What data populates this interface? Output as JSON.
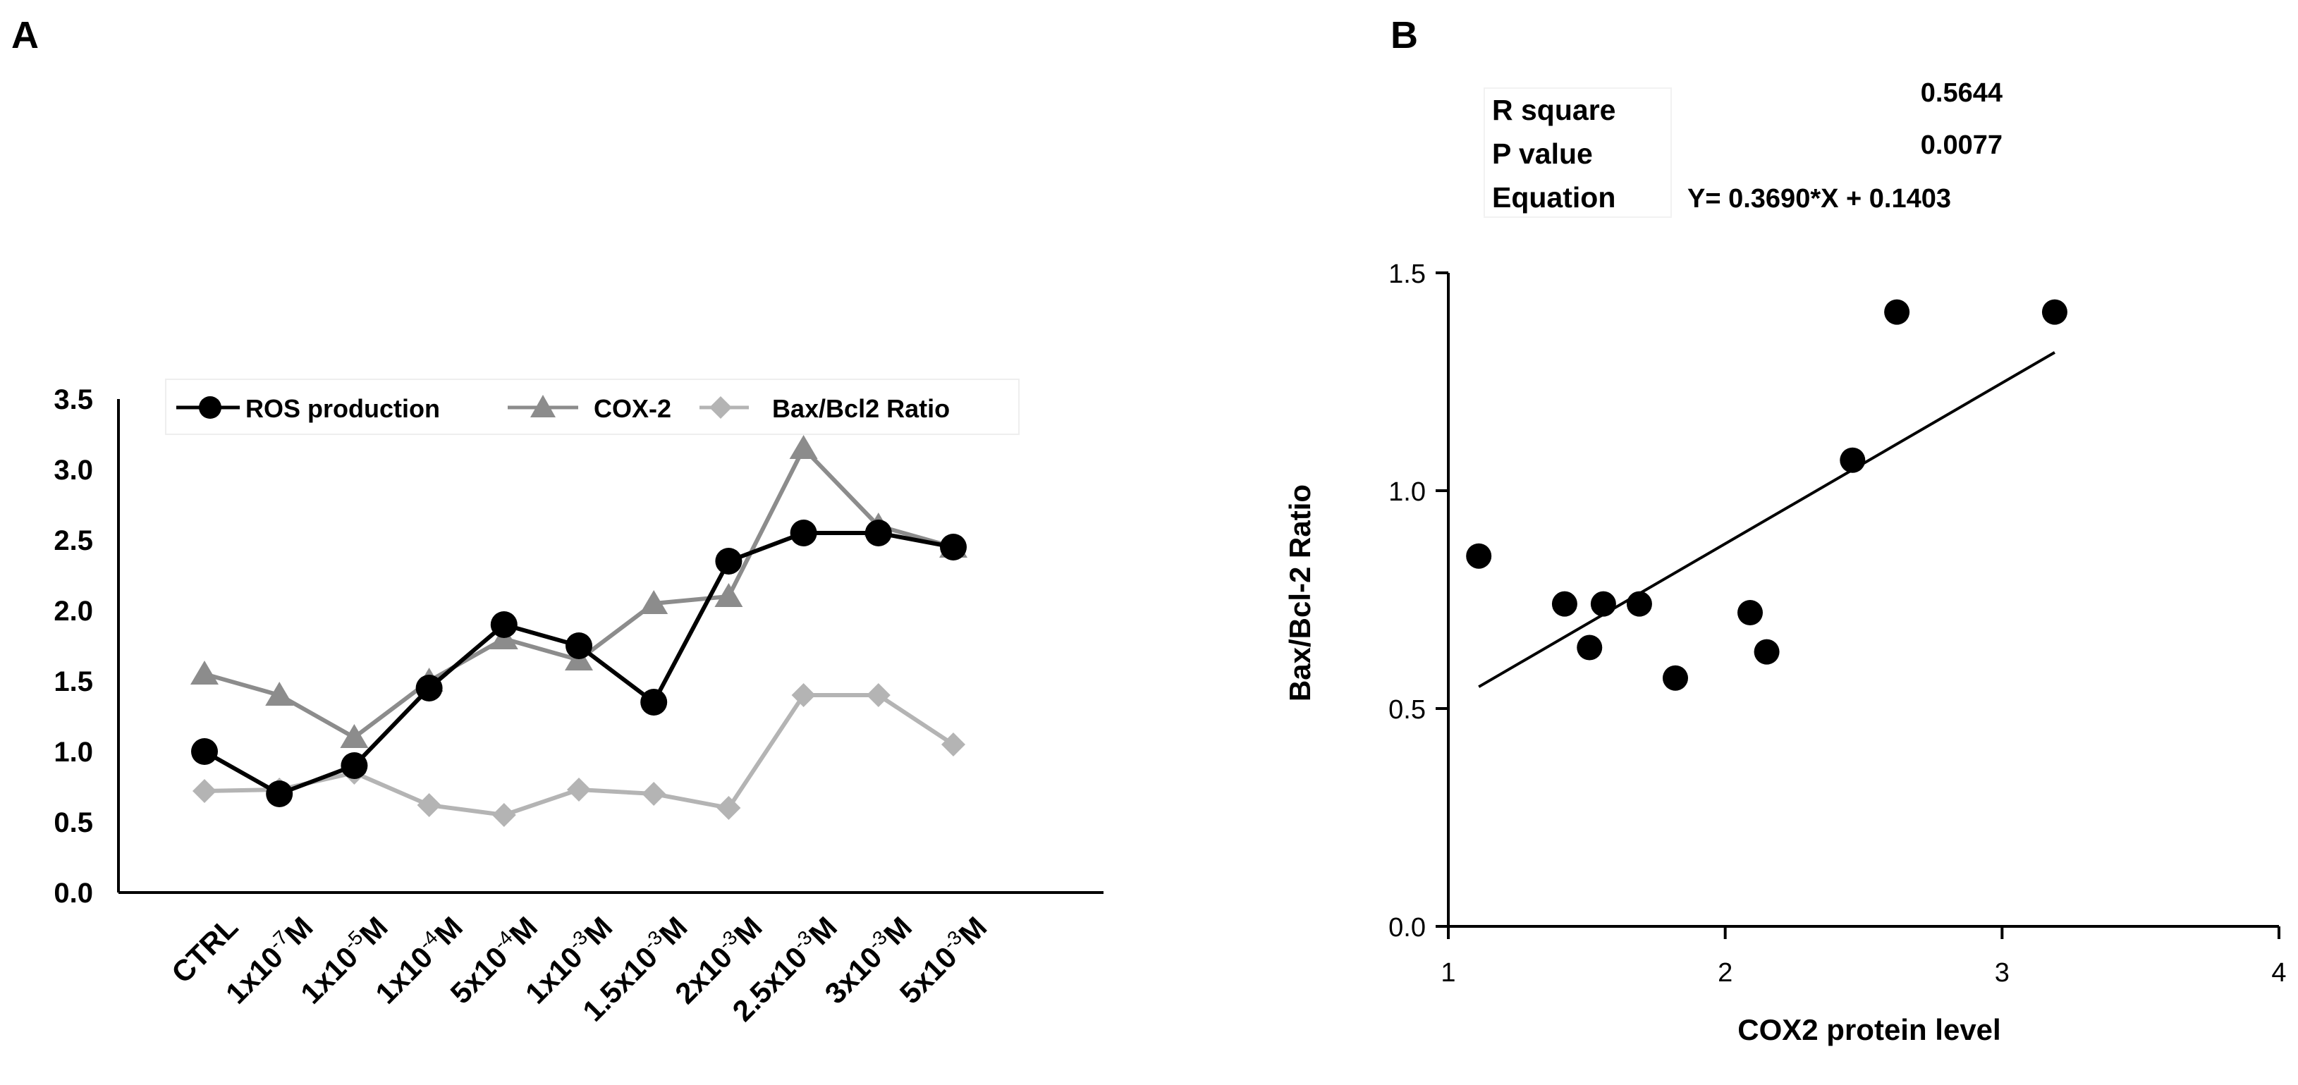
{
  "panels": {
    "a_label": "A",
    "b_label": "B"
  },
  "stats": {
    "rows": [
      {
        "label": "R square",
        "value": "0.5644"
      },
      {
        "label": "P value",
        "value": "0.0077"
      },
      {
        "label": "Equation",
        "value": "Y= 0.3690*X + 0.1403"
      }
    ]
  },
  "colors": {
    "ros": "#000000",
    "cox2": "#8c8c8c",
    "baxbcl2": "#b4b4b4",
    "axis": "#000000",
    "scatter": "#000000"
  },
  "chart_data": [
    {
      "panel": "A",
      "type": "line",
      "title": "",
      "xlabel": "",
      "ylabel": "",
      "ylim": [
        0,
        3.5
      ],
      "yticks": [
        "0.0",
        "0.5",
        "1.0",
        "1.5",
        "2.0",
        "2.5",
        "3.0",
        "3.5"
      ],
      "legend_position": "top",
      "categories": [
        {
          "base": "CTRL",
          "exp": "",
          "unit": ""
        },
        {
          "base": "1x10",
          "exp": "-7",
          "unit": "M"
        },
        {
          "base": "1x10",
          "exp": "-5",
          "unit": "M"
        },
        {
          "base": "1x10",
          "exp": "-4",
          "unit": "M"
        },
        {
          "base": "5x10",
          "exp": "-4",
          "unit": "M"
        },
        {
          "base": "1x10",
          "exp": "-3",
          "unit": "M"
        },
        {
          "base": "1.5x10",
          "exp": "-3",
          "unit": "M"
        },
        {
          "base": "2x10",
          "exp": "-3",
          "unit": "M"
        },
        {
          "base": "2.5x10",
          "exp": "-3",
          "unit": "M"
        },
        {
          "base": "3x10",
          "exp": "-3",
          "unit": "M"
        },
        {
          "base": "5x10",
          "exp": "-3",
          "unit": "M"
        }
      ],
      "series": [
        {
          "name": "ROS production",
          "marker": "circle",
          "color": "#000000",
          "values": [
            1.0,
            0.7,
            0.9,
            1.45,
            1.9,
            1.75,
            1.35,
            2.35,
            2.55,
            2.55,
            2.45
          ]
        },
        {
          "name": "COX-2",
          "marker": "triangle",
          "color": "#8c8c8c",
          "values": [
            1.55,
            1.4,
            1.1,
            1.5,
            1.8,
            1.65,
            2.05,
            2.1,
            3.15,
            2.6,
            2.45
          ]
        },
        {
          "name": "Bax/Bcl2 Ratio",
          "marker": "diamond",
          "color": "#b4b4b4",
          "values": [
            0.72,
            0.73,
            0.85,
            0.62,
            0.55,
            0.73,
            0.7,
            0.6,
            1.4,
            1.4,
            1.05
          ]
        }
      ]
    },
    {
      "panel": "B",
      "type": "scatter",
      "title": "",
      "xlabel": "COX2 protein level",
      "ylabel": "Bax/Bcl-2 Ratio",
      "xlim": [
        1,
        4
      ],
      "ylim": [
        0,
        1.5
      ],
      "xticks": [
        "1",
        "2",
        "3",
        "4"
      ],
      "yticks": [
        "0.0",
        "0.5",
        "1.0",
        "1.5"
      ],
      "points": [
        {
          "x": 1.11,
          "y": 0.85
        },
        {
          "x": 1.42,
          "y": 0.74
        },
        {
          "x": 1.56,
          "y": 0.74
        },
        {
          "x": 1.69,
          "y": 0.74
        },
        {
          "x": 1.51,
          "y": 0.64
        },
        {
          "x": 1.82,
          "y": 0.57
        },
        {
          "x": 2.09,
          "y": 0.72
        },
        {
          "x": 2.15,
          "y": 0.63
        },
        {
          "x": 2.46,
          "y": 1.07
        },
        {
          "x": 2.62,
          "y": 1.41
        },
        {
          "x": 3.19,
          "y": 1.41
        }
      ],
      "fit": {
        "slope": 0.369,
        "intercept": 0.1403,
        "x_from": 1.11,
        "x_to": 3.19
      }
    }
  ]
}
